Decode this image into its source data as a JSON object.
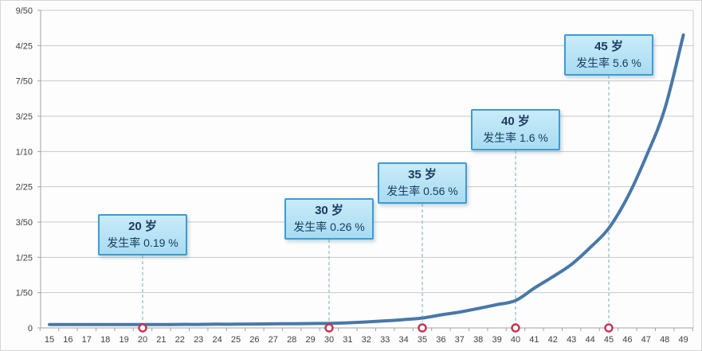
{
  "chart_data": {
    "type": "line",
    "title": "",
    "xlabel": "",
    "ylabel": "",
    "x": [
      15,
      16,
      17,
      18,
      19,
      20,
      21,
      22,
      23,
      24,
      25,
      26,
      27,
      28,
      29,
      30,
      31,
      32,
      33,
      34,
      35,
      36,
      37,
      38,
      39,
      40,
      41,
      42,
      43,
      44,
      45,
      46,
      47,
      48,
      49
    ],
    "series": [
      {
        "name": "发生率",
        "values": [
          0.0019,
          0.0019,
          0.0019,
          0.0019,
          0.0019,
          0.0019,
          0.0019,
          0.002,
          0.002,
          0.0021,
          0.0021,
          0.0022,
          0.0023,
          0.0024,
          0.0025,
          0.0026,
          0.0029,
          0.0034,
          0.004,
          0.0047,
          0.0056,
          0.0074,
          0.009,
          0.011,
          0.0132,
          0.0155,
          0.0225,
          0.029,
          0.036,
          0.0455,
          0.0565,
          0.074,
          0.097,
          0.124,
          0.166
        ]
      }
    ],
    "ylim": [
      0,
      0.18
    ],
    "grid": "horizontal",
    "legend_position": "none",
    "y_ticks": [
      {
        "label": "0",
        "value": 0.0
      },
      {
        "label": "1/50",
        "value": 0.02
      },
      {
        "label": "1/25",
        "value": 0.04
      },
      {
        "label": "3/50",
        "value": 0.06
      },
      {
        "label": "2/25",
        "value": 0.08
      },
      {
        "label": "1/10",
        "value": 0.1
      },
      {
        "label": "3/25",
        "value": 0.12
      },
      {
        "label": "7/50",
        "value": 0.14
      },
      {
        "label": "4/25",
        "value": 0.16
      },
      {
        "label": "9/50",
        "value": 0.18
      }
    ],
    "annotations": [
      {
        "age": 20,
        "age_label": "20 岁",
        "rate_label": "发生率 0.19 %",
        "rate_percent": 0.19
      },
      {
        "age": 30,
        "age_label": "30 岁",
        "rate_label": "发生率 0.26 %",
        "rate_percent": 0.26
      },
      {
        "age": 35,
        "age_label": "35 岁",
        "rate_label": "发生率 0.56 %",
        "rate_percent": 0.56
      },
      {
        "age": 40,
        "age_label": "40 岁",
        "rate_label": "发生率 1.6 %",
        "rate_percent": 1.6
      },
      {
        "age": 45,
        "age_label": "45 岁",
        "rate_label": "发生率 5.6 %",
        "rate_percent": 5.6
      }
    ]
  },
  "colors": {
    "line": "#4878a8",
    "grid": "#c9c9c9",
    "axis": "#a3a3a3",
    "tick_text": "#3f3f3f",
    "dashed_line": "#93bfce",
    "marker_stroke": "#c23352",
    "marker_fill": "#ffffff",
    "callout_border": "#3d9cd2",
    "callout_bg_top": "#c9ebf9",
    "callout_bg_bottom": "#a8dcf2",
    "callout_text": "#1c3a60"
  }
}
